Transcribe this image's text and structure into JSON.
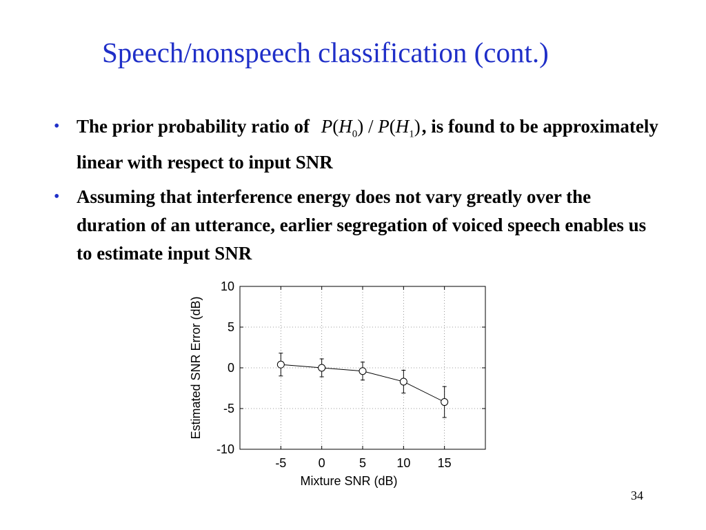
{
  "slide": {
    "title": "Speech/nonspeech classification (cont.)",
    "page_number": "34",
    "colors": {
      "title": "#1f2fc8",
      "bullet": "#1f2fc8",
      "text": "#000000"
    },
    "bullets": [
      {
        "text_before": "The prior probability ratio of",
        "formula": "P(H0) / P(H1)",
        "text_after": ", is found to be approximately linear with respect to input SNR"
      },
      {
        "text": "Assuming that interference energy does not vary greatly over the duration of an utterance, earlier segregation of voiced speech enables us to estimate input SNR"
      }
    ]
  },
  "chart_data": {
    "type": "line",
    "title": "",
    "xlabel": "Mixture SNR (dB)",
    "ylabel": "Estimated SNR Error (dB)",
    "xlim": [
      -10,
      20
    ],
    "ylim": [
      -10,
      10
    ],
    "x_ticks": [
      -5,
      0,
      5,
      10,
      15
    ],
    "y_ticks": [
      -10,
      -5,
      0,
      5,
      10
    ],
    "grid": true,
    "series": [
      {
        "x": [
          -5,
          0,
          5,
          10,
          15
        ],
        "y": [
          0.4,
          0.0,
          -0.4,
          -1.7,
          -4.2
        ],
        "error": [
          1.4,
          1.1,
          1.1,
          1.4,
          1.9
        ],
        "marker": "circle",
        "color": "#000000"
      }
    ]
  }
}
